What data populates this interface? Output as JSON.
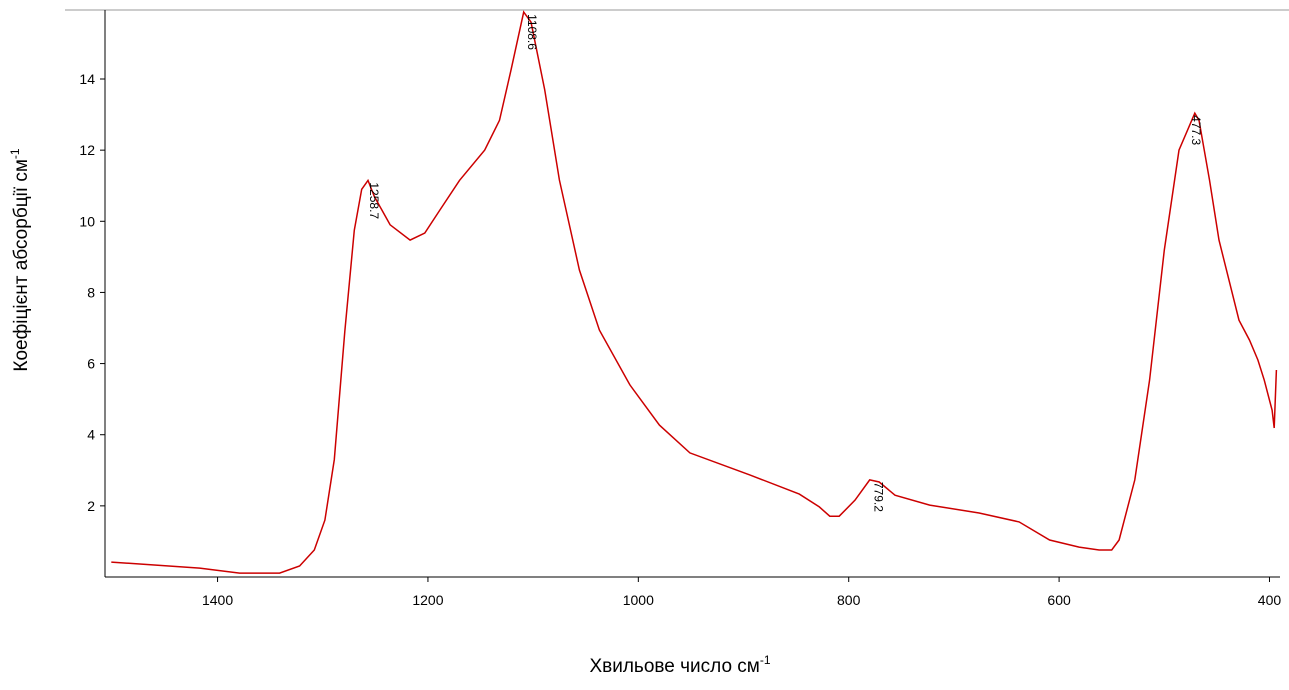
{
  "chart_data": {
    "type": "line",
    "xlabel": {
      "text": "Хвильове число см",
      "sup": "-1"
    },
    "ylabel": {
      "text": "Коефіцієнт абсорбції см",
      "sup": "-1"
    },
    "x": [
      1501,
      1417,
      1379,
      1341,
      1322,
      1308,
      1298,
      1289,
      1279,
      1270,
      1263,
      1257,
      1251,
      1236,
      1217,
      1203,
      1189,
      1170,
      1146,
      1132,
      1121,
      1109,
      1102,
      1089,
      1075,
      1056,
      1037,
      1008,
      980,
      951,
      894,
      847,
      828,
      818,
      809,
      794,
      780,
      771,
      756,
      723,
      676,
      638,
      609,
      581,
      562,
      550,
      543,
      528,
      514,
      500,
      486,
      471,
      467,
      457,
      448,
      429,
      419,
      411,
      405,
      397.5,
      395.5,
      393.4
    ],
    "values": [
      0.42,
      0.25,
      0.11,
      0.11,
      0.31,
      0.76,
      1.6,
      3.3,
      6.9,
      9.75,
      10.9,
      11.15,
      10.7,
      9.9,
      9.47,
      9.67,
      10.3,
      11.15,
      12.0,
      12.84,
      14.25,
      15.88,
      15.6,
      13.7,
      11.16,
      8.63,
      6.94,
      5.4,
      4.27,
      3.49,
      2.87,
      2.33,
      1.97,
      1.71,
      1.71,
      2.16,
      2.73,
      2.67,
      2.3,
      2.02,
      1.8,
      1.55,
      1.04,
      0.84,
      0.76,
      0.76,
      1.04,
      2.73,
      5.54,
      9.19,
      12.0,
      13.04,
      12.84,
      11.16,
      9.47,
      7.22,
      6.66,
      6.1,
      5.54,
      4.69,
      4.19,
      5.82
    ],
    "color": "#cc0000",
    "peaks": [
      {
        "x": 1258.7,
        "y": 11.15
      },
      {
        "x": 1108.6,
        "y": 15.88
      },
      {
        "x": 779.2,
        "y": 2.73
      },
      {
        "x": 477.3,
        "y": 13.04
      }
    ],
    "xlim": [
      1507,
      390
    ],
    "ylim": [
      0,
      15.94
    ],
    "xticks": [
      1400,
      1200,
      1000,
      800,
      600,
      400
    ],
    "yticks": [
      2,
      4,
      6,
      8,
      10,
      12,
      14
    ]
  }
}
